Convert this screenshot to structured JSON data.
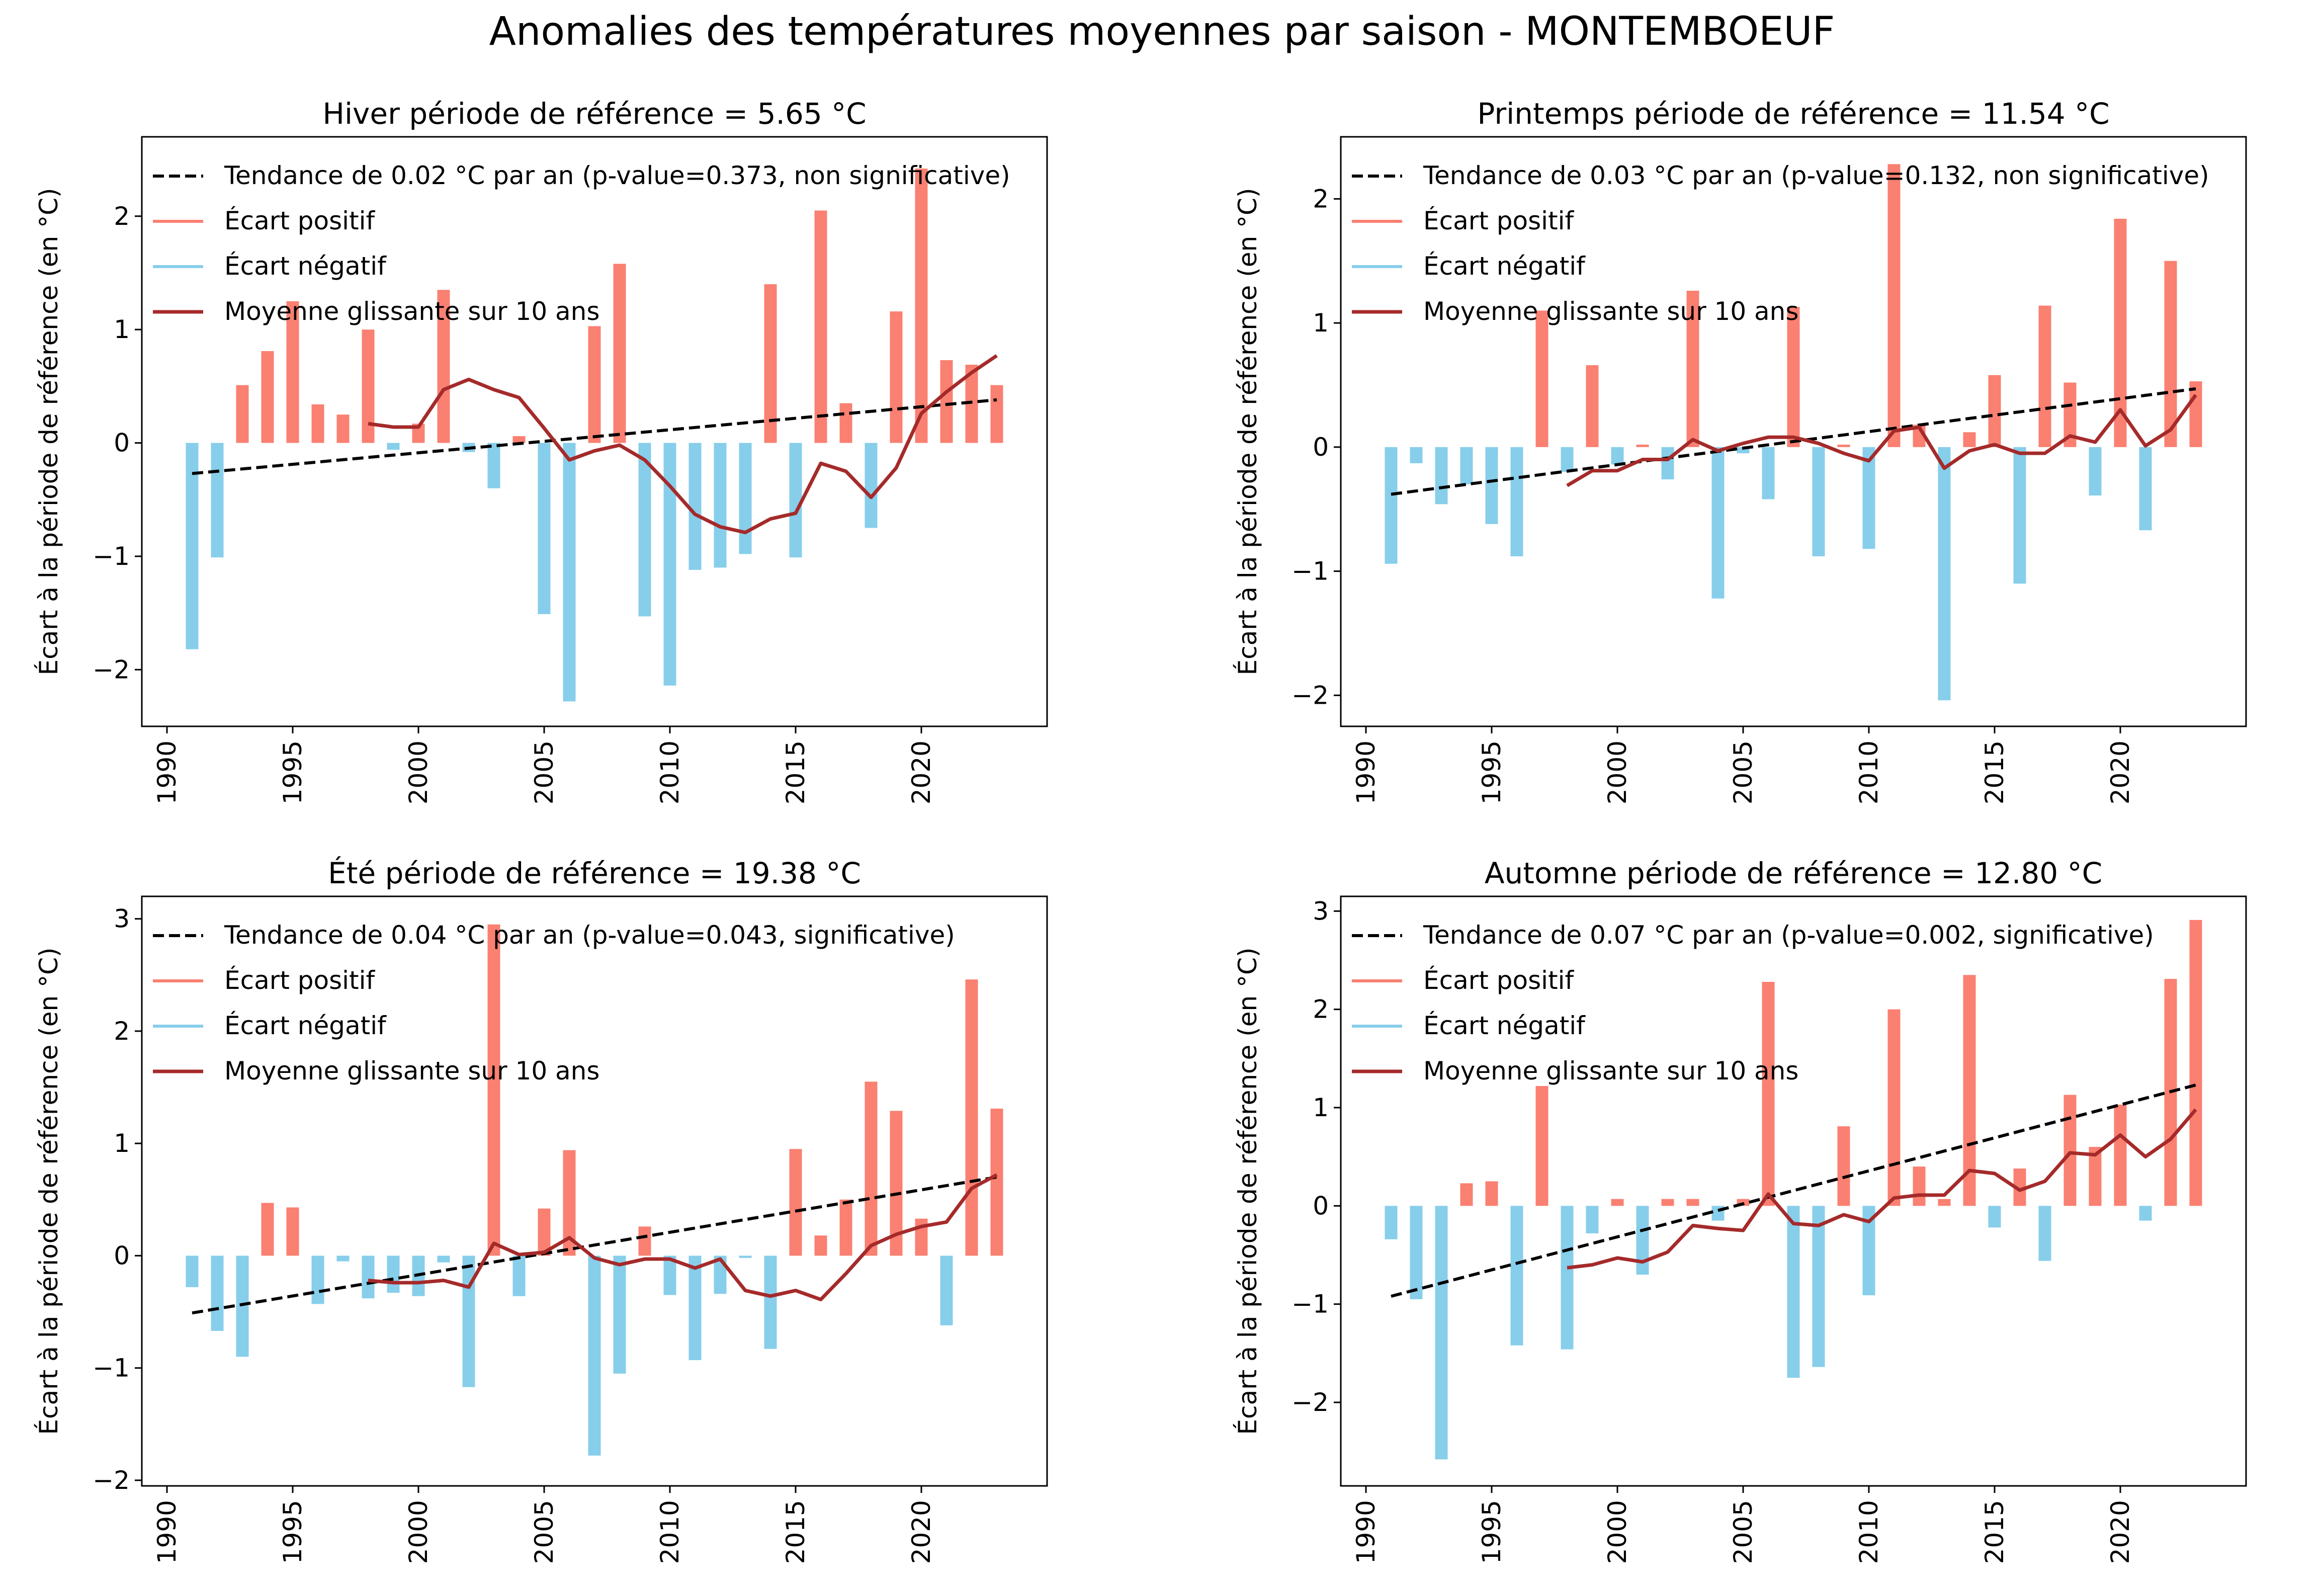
{
  "figure": {
    "suptitle": "Anomalies des températures moyennes par saison - MONTEMBOEUF"
  },
  "colors": {
    "positive": "#fa8072",
    "negative": "#87ceeb",
    "rolling": "#a52a2a",
    "trend": "#000000"
  },
  "chart_data": [
    {
      "type": "bar",
      "title": "Hiver période de référence = 5.65 °C",
      "ylabel": "Écart à la période de référence (en °C)",
      "xlim": [
        1989,
        2025
      ],
      "ylim": [
        -2.5,
        2.7
      ],
      "xticks": [
        1990,
        1995,
        2000,
        2005,
        2010,
        2015,
        2020
      ],
      "yticks": [
        -2,
        -1,
        0,
        1,
        2
      ],
      "legend": {
        "position": "top-left",
        "trend": "Tendance de 0.02 °C par an (p-value=0.373, non significative)",
        "positive": "Écart positif",
        "negative": "Écart négatif",
        "rolling": "Moyenne glissante sur 10 ans"
      },
      "years": [
        1991,
        1992,
        1993,
        1994,
        1995,
        1996,
        1997,
        1998,
        1999,
        2000,
        2001,
        2002,
        2003,
        2004,
        2005,
        2006,
        2007,
        2008,
        2009,
        2010,
        2011,
        2012,
        2013,
        2014,
        2015,
        2016,
        2017,
        2018,
        2019,
        2020,
        2021,
        2022,
        2023
      ],
      "values": [
        -1.82,
        -1.01,
        0.51,
        0.81,
        1.25,
        0.34,
        0.25,
        1.0,
        -0.06,
        0.17,
        1.35,
        -0.08,
        -0.4,
        0.06,
        -1.51,
        -2.28,
        1.03,
        1.58,
        -1.53,
        -2.14,
        -1.12,
        -1.1,
        -0.98,
        1.4,
        -1.01,
        2.05,
        0.35,
        -0.75,
        1.16,
        2.42,
        0.73,
        0.69,
        0.51
      ],
      "rolling_mean": {
        "years": [
          1998,
          1999,
          2000,
          2001,
          2002,
          2003,
          2004,
          2005,
          2006,
          2007,
          2008,
          2009,
          2010,
          2011,
          2012,
          2013,
          2014,
          2015,
          2016,
          2017,
          2018,
          2019,
          2020,
          2021,
          2022,
          2023
        ],
        "values": [
          0.17,
          0.14,
          0.14,
          0.47,
          0.56,
          0.47,
          0.4,
          0.13,
          -0.15,
          -0.07,
          -0.02,
          -0.15,
          -0.38,
          -0.63,
          -0.74,
          -0.79,
          -0.67,
          -0.62,
          -0.18,
          -0.25,
          -0.48,
          -0.22,
          0.26,
          0.45,
          0.62,
          0.77
        ]
      },
      "trend": {
        "x": [
          1991,
          2023
        ],
        "y": [
          -0.27,
          0.38
        ]
      }
    },
    {
      "type": "bar",
      "title": "Printemps période de référence = 11.54 °C",
      "ylabel": "Écart à la période de référence (en °C)",
      "xlim": [
        1989,
        2025
      ],
      "ylim": [
        -2.25,
        2.5
      ],
      "xticks": [
        1990,
        1995,
        2000,
        2005,
        2010,
        2015,
        2020
      ],
      "yticks": [
        -2,
        -1,
        0,
        1,
        2
      ],
      "legend": {
        "position": "top-left",
        "trend": "Tendance de 0.03 °C par an (p-value=0.132, non significative)",
        "positive": "Écart positif",
        "negative": "Écart négatif",
        "rolling": "Moyenne glissante sur 10 ans"
      },
      "years": [
        1991,
        1992,
        1993,
        1994,
        1995,
        1996,
        1997,
        1998,
        1999,
        2000,
        2001,
        2002,
        2003,
        2004,
        2005,
        2006,
        2007,
        2008,
        2009,
        2010,
        2011,
        2012,
        2013,
        2014,
        2015,
        2016,
        2017,
        2018,
        2019,
        2020,
        2021,
        2022,
        2023
      ],
      "values": [
        -0.94,
        -0.13,
        -0.46,
        -0.3,
        -0.62,
        -0.88,
        1.1,
        -0.2,
        0.66,
        -0.14,
        0.02,
        -0.26,
        1.26,
        -1.22,
        -0.05,
        -0.42,
        1.13,
        -0.88,
        0.02,
        -0.82,
        2.28,
        0.18,
        -2.04,
        0.12,
        0.58,
        -1.1,
        1.14,
        0.52,
        -0.39,
        1.84,
        -0.67,
        1.5,
        0.53
      ],
      "rolling_mean": {
        "years": [
          1998,
          1999,
          2000,
          2001,
          2002,
          2003,
          2004,
          2005,
          2006,
          2007,
          2008,
          2009,
          2010,
          2011,
          2012,
          2013,
          2014,
          2015,
          2016,
          2017,
          2018,
          2019,
          2020,
          2021,
          2022,
          2023
        ],
        "values": [
          -0.31,
          -0.19,
          -0.19,
          -0.1,
          -0.1,
          0.06,
          -0.03,
          0.03,
          0.08,
          0.08,
          0.03,
          -0.05,
          -0.11,
          0.13,
          0.16,
          -0.17,
          -0.03,
          0.02,
          -0.05,
          -0.05,
          0.09,
          0.04,
          0.3,
          0.01,
          0.14,
          0.42
        ]
      },
      "trend": {
        "x": [
          1991,
          2023
        ],
        "y": [
          -0.38,
          0.47
        ]
      }
    },
    {
      "type": "bar",
      "title": "Été période de référence = 19.38 °C",
      "ylabel": "Écart à la période de référence (en °C)",
      "xlim": [
        1989,
        2025
      ],
      "ylim": [
        -2.05,
        3.2
      ],
      "xticks": [
        1990,
        1995,
        2000,
        2005,
        2010,
        2015,
        2020
      ],
      "yticks": [
        -2,
        -1,
        0,
        1,
        2,
        3
      ],
      "legend": {
        "position": "top-left",
        "trend": "Tendance de 0.04 °C par an (p-value=0.043, significative)",
        "positive": "Écart positif",
        "negative": "Écart négatif",
        "rolling": "Moyenne glissante sur 10 ans"
      },
      "years": [
        1991,
        1992,
        1993,
        1994,
        1995,
        1996,
        1997,
        1998,
        1999,
        2000,
        2001,
        2002,
        2003,
        2004,
        2005,
        2006,
        2007,
        2008,
        2009,
        2010,
        2011,
        2012,
        2013,
        2014,
        2015,
        2016,
        2017,
        2018,
        2019,
        2020,
        2021,
        2022,
        2023
      ],
      "values": [
        -0.28,
        -0.67,
        -0.9,
        0.47,
        0.43,
        -0.43,
        -0.05,
        -0.38,
        -0.33,
        -0.36,
        -0.06,
        -1.17,
        2.95,
        -0.36,
        0.42,
        0.94,
        -1.78,
        -1.05,
        0.26,
        -0.35,
        -0.93,
        -0.34,
        -0.02,
        -0.83,
        0.95,
        0.18,
        0.5,
        1.55,
        1.29,
        0.33,
        -0.62,
        2.46,
        1.31
      ],
      "rolling_mean": {
        "years": [
          1998,
          1999,
          2000,
          2001,
          2002,
          2003,
          2004,
          2005,
          2006,
          2007,
          2008,
          2009,
          2010,
          2011,
          2012,
          2013,
          2014,
          2015,
          2016,
          2017,
          2018,
          2019,
          2020,
          2021,
          2022,
          2023
        ],
        "values": [
          -0.22,
          -0.24,
          -0.24,
          -0.22,
          -0.28,
          0.11,
          0.01,
          0.03,
          0.16,
          -0.02,
          -0.08,
          -0.03,
          -0.03,
          -0.11,
          -0.03,
          -0.31,
          -0.36,
          -0.31,
          -0.39,
          -0.16,
          0.09,
          0.19,
          0.26,
          0.3,
          0.6,
          0.72
        ]
      },
      "trend": {
        "x": [
          1991,
          2023
        ],
        "y": [
          -0.51,
          0.7
        ]
      }
    },
    {
      "type": "bar",
      "title": "Automne période de référence = 12.80 °C",
      "ylabel": "Écart à la période de référence (en °C)",
      "xlim": [
        1989,
        2025
      ],
      "ylim": [
        -2.85,
        3.15
      ],
      "xticks": [
        1990,
        1995,
        2000,
        2005,
        2010,
        2015,
        2020
      ],
      "yticks": [
        -2,
        -1,
        0,
        1,
        2,
        3
      ],
      "legend": {
        "position": "top-left",
        "trend": "Tendance de 0.07 °C par an (p-value=0.002, significative)",
        "positive": "Écart positif",
        "negative": "Écart négatif",
        "rolling": "Moyenne glissante sur 10 ans"
      },
      "years": [
        1991,
        1992,
        1993,
        1994,
        1995,
        1996,
        1997,
        1998,
        1999,
        2000,
        2001,
        2002,
        2003,
        2004,
        2005,
        2006,
        2007,
        2008,
        2009,
        2010,
        2011,
        2012,
        2013,
        2014,
        2015,
        2016,
        2017,
        2018,
        2019,
        2020,
        2021,
        2022,
        2023
      ],
      "values": [
        -0.34,
        -0.95,
        -2.58,
        0.23,
        0.25,
        -1.42,
        1.22,
        -1.46,
        -0.28,
        0.07,
        -0.7,
        0.07,
        0.07,
        -0.15,
        0.07,
        2.28,
        -1.75,
        -1.64,
        0.81,
        -0.91,
        2.0,
        0.4,
        0.07,
        2.35,
        -0.22,
        0.38,
        -0.56,
        1.13,
        0.6,
        1.03,
        -0.15,
        2.31,
        2.91
      ],
      "rolling_mean": {
        "years": [
          1998,
          1999,
          2000,
          2001,
          2002,
          2003,
          2004,
          2005,
          2006,
          2007,
          2008,
          2009,
          2010,
          2011,
          2012,
          2013,
          2014,
          2015,
          2016,
          2017,
          2018,
          2019,
          2020,
          2021,
          2022,
          2023
        ],
        "values": [
          -0.63,
          -0.6,
          -0.53,
          -0.57,
          -0.47,
          -0.2,
          -0.23,
          -0.25,
          0.12,
          -0.18,
          -0.2,
          -0.09,
          -0.16,
          0.08,
          0.11,
          0.11,
          0.36,
          0.33,
          0.16,
          0.25,
          0.54,
          0.52,
          0.72,
          0.5,
          0.68,
          0.98
        ]
      },
      "trend": {
        "x": [
          1991,
          2023
        ],
        "y": [
          -0.92,
          1.23
        ]
      }
    }
  ]
}
